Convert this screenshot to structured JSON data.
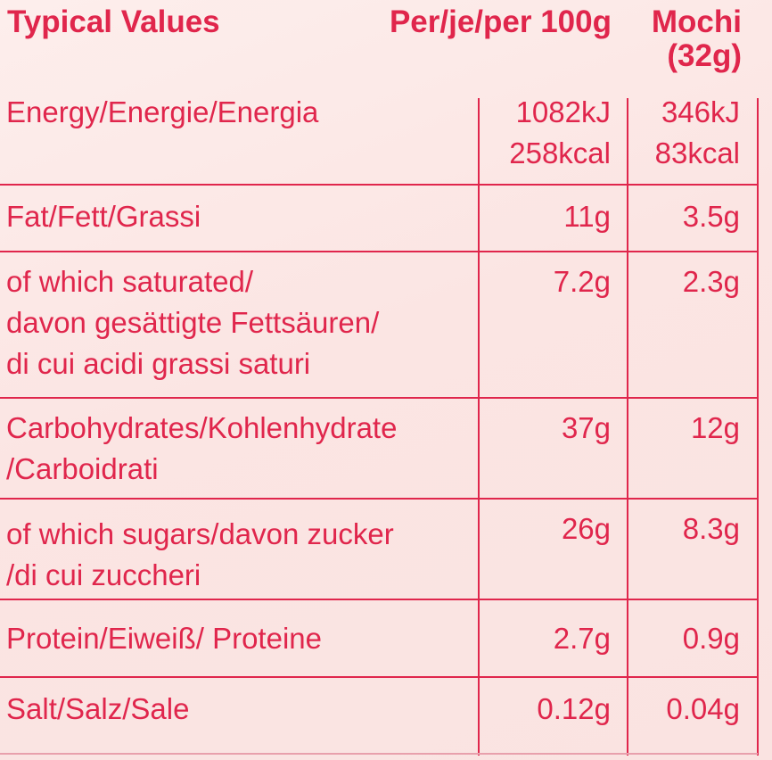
{
  "header": {
    "col1": "Typical Values",
    "col2": "Per/je/per 100g",
    "col3_line1": "Mochi",
    "col3_line2": "(32g)"
  },
  "rows": [
    {
      "label": [
        "Energy/Energie/Energia"
      ],
      "per100": [
        "1082kJ",
        "258kcal"
      ],
      "per_mochi": [
        "346kJ",
        "83kcal"
      ]
    },
    {
      "label": [
        "Fat/Fett/Grassi"
      ],
      "per100": [
        "11g"
      ],
      "per_mochi": [
        "3.5g"
      ]
    },
    {
      "label": [
        "of which saturated/",
        "davon gesättigte Fettsäuren/",
        "di cui acidi grassi saturi"
      ],
      "per100": [
        "7.2g"
      ],
      "per_mochi": [
        "2.3g"
      ]
    },
    {
      "label": [
        "Carbohydrates/Kohlenhydrate",
        "/Carboidrati"
      ],
      "per100": [
        "37g"
      ],
      "per_mochi": [
        "12g"
      ]
    },
    {
      "label": [
        "of which sugars/davon zucker",
        "/di cui zuccheri"
      ],
      "per100": [
        "26g"
      ],
      "per_mochi": [
        "8.3g"
      ]
    },
    {
      "label": [
        "Protein/Eiweiß/ Proteine"
      ],
      "per100": [
        "2.7g"
      ],
      "per_mochi": [
        "0.9g"
      ]
    },
    {
      "label": [
        "Salt/Salz/Sale"
      ],
      "per100": [
        "0.12g"
      ],
      "per_mochi": [
        "0.04g"
      ]
    }
  ],
  "colors": {
    "text": "#e0264c",
    "background": "#fbe7e5"
  }
}
